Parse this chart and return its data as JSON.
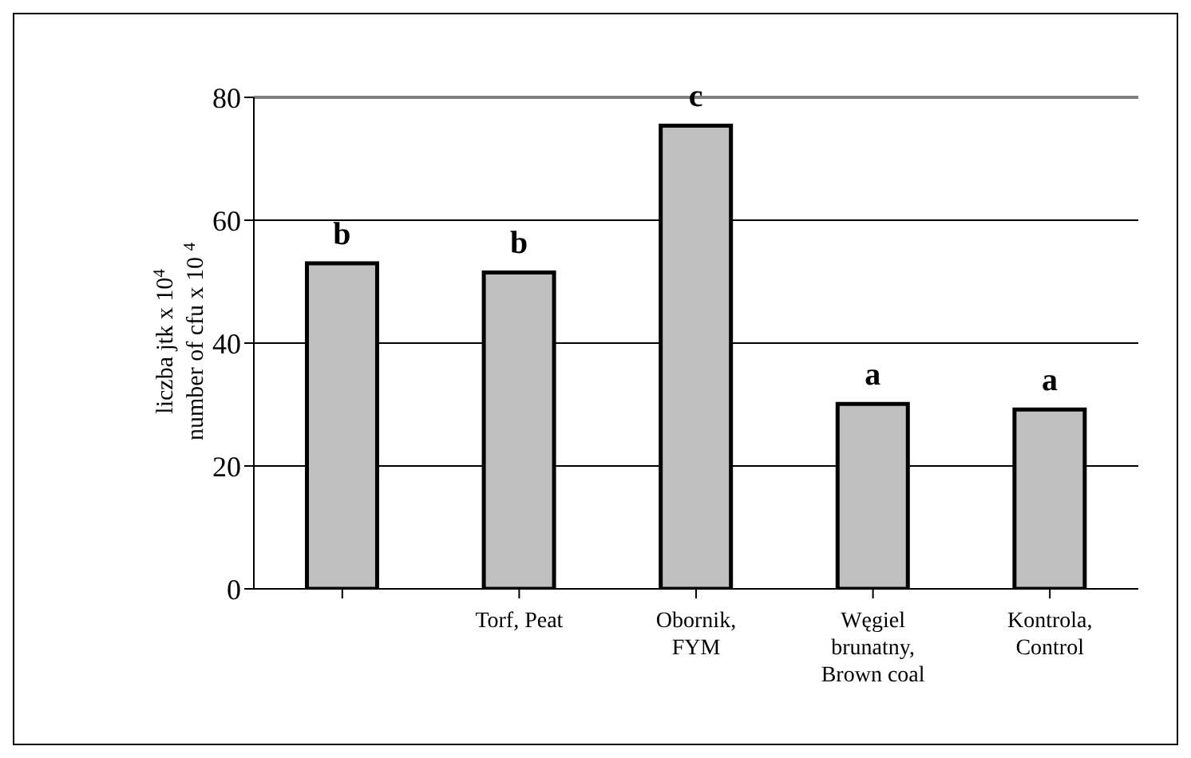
{
  "chart_data": {
    "type": "bar",
    "ylabel": "liczba jtk x 10$^{4}$\nnumber of cfu x 10 $^{4}$",
    "categories": [
      null,
      "Torf, Peat",
      "Obornik,\nFYM",
      "Węgiel\nbrunatny,\nBrown coal",
      "Kontrola,\nControl"
    ],
    "values": [
      53,
      51.5,
      75.4,
      30.1,
      29.2
    ],
    "color": "#c0c0c0",
    "ylim": [
      0,
      80
    ],
    "yticks": [
      0,
      20,
      40,
      60,
      80
    ],
    "grid": "y",
    "annotations": [
      "b",
      "b",
      "c",
      "a",
      "a"
    ]
  }
}
